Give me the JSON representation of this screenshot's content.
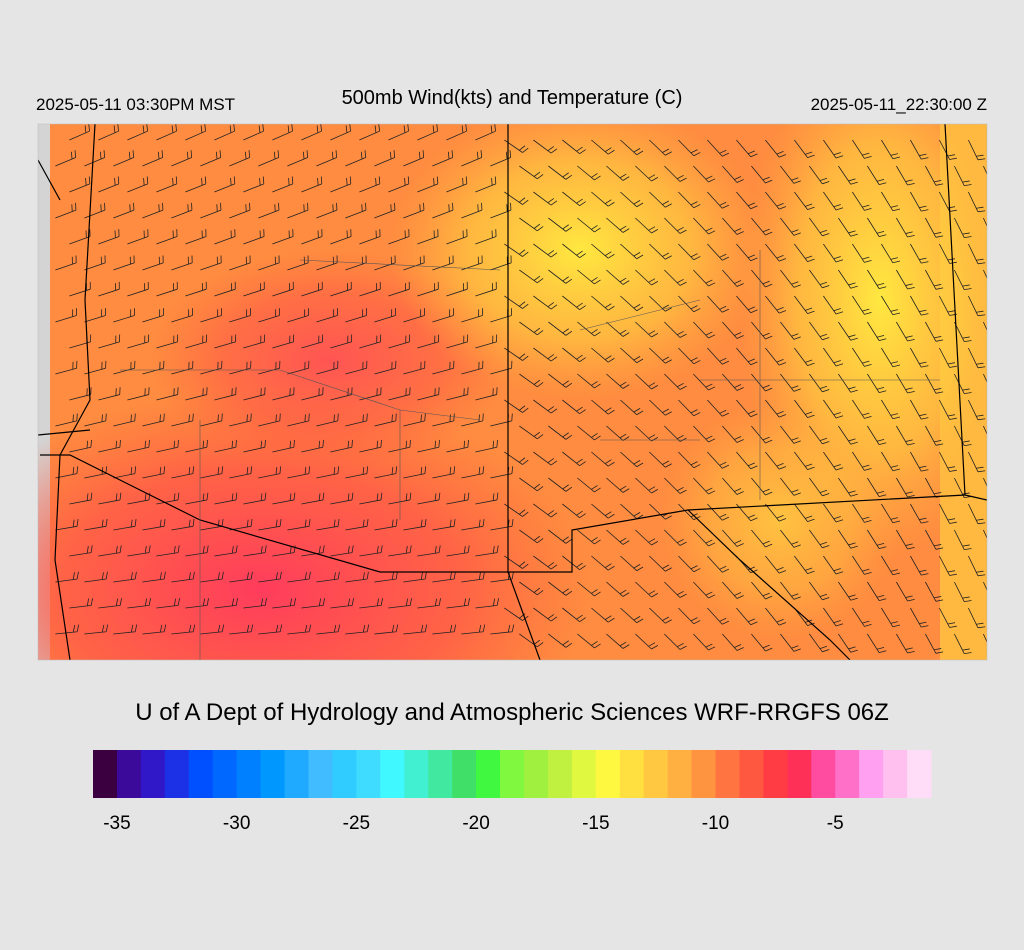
{
  "header": {
    "local_time": "2025-05-11 03:30PM MST",
    "title": "500mb Wind(kts) and Temperature (C)",
    "valid_time": "2025-05-11_22:30:00 Z"
  },
  "footer": "U of A Dept of Hydrology and Atmospheric Sciences WRF-RRGFS 06Z",
  "colorbar": {
    "bounds": [
      -36,
      -35,
      -34,
      -33,
      -32,
      -31,
      -30,
      -29,
      -28,
      -27,
      -26,
      -25,
      -24,
      -23,
      -22,
      -21,
      -20,
      -19,
      -18,
      -17,
      -16,
      -15,
      -14,
      -13,
      -12,
      -11,
      -10,
      -9,
      -8,
      -7,
      -6,
      -5,
      -4,
      -3,
      -2,
      -1
    ],
    "colors": [
      "#3a0040",
      "#3c0a9a",
      "#3018c8",
      "#1c30e6",
      "#0050ff",
      "#0068ff",
      "#0080ff",
      "#0098ff",
      "#20aaff",
      "#40bcff",
      "#30ccff",
      "#40dcff",
      "#40f8ff",
      "#40f0d0",
      "#40e8a0",
      "#40e068",
      "#40f840",
      "#80f840",
      "#a0f040",
      "#c0f040",
      "#e0f840",
      "#fff840",
      "#ffe040",
      "#ffc840",
      "#ffb040",
      "#ff9440",
      "#ff7440",
      "#ff5840",
      "#ff3c44",
      "#ff3058",
      "#ff4ca0",
      "#ff70c8",
      "#ffa0f0",
      "#ffc0f0",
      "#ffdcf8"
    ],
    "ticks": [
      -35,
      -30,
      -25,
      -20,
      -15,
      -10,
      -5
    ]
  }
}
